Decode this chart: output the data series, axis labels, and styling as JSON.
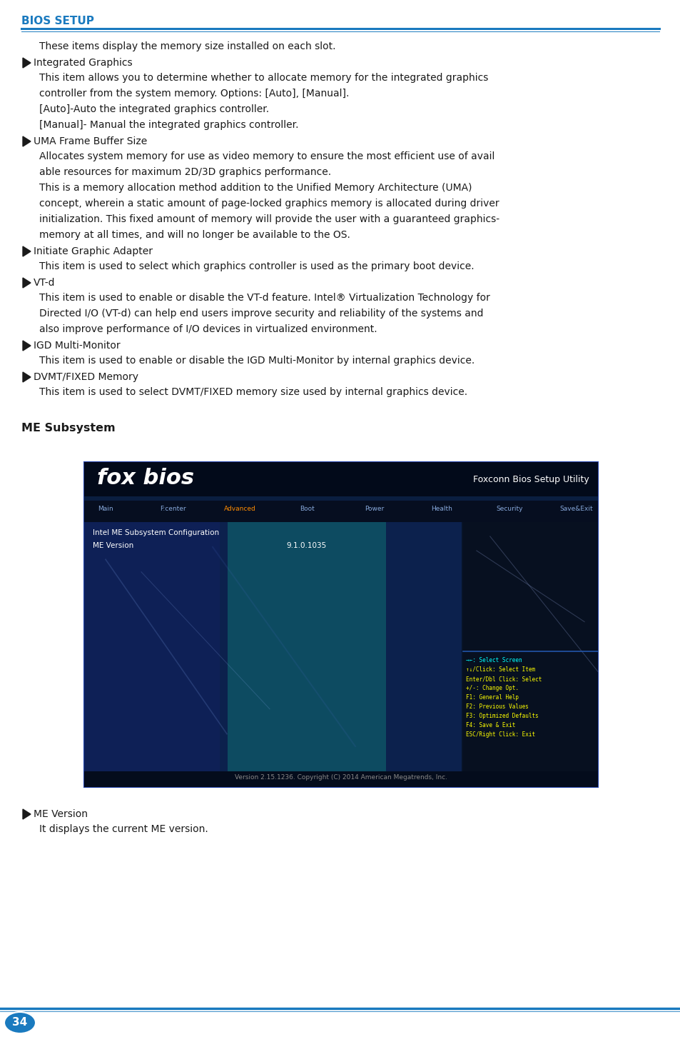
{
  "page_bg": "#ffffff",
  "header_text": "BIOS SETUP",
  "header_color": "#1a7abf",
  "header_line_color": "#1a7abf",
  "body_text_color": "#1a1a1a",
  "section_title": "ME Subsystem",
  "bullet_color": "#1a1a1a",
  "page_number": "34",
  "page_number_bg": "#1a7abf",
  "page_number_text_color": "#ffffff",
  "bottom_line_color": "#1a7abf",
  "paragraphs": [
    {
      "indent": true,
      "bullet": false,
      "text": "These items display the memory size installed on each slot."
    },
    {
      "indent": false,
      "bullet": true,
      "text": "Integrated Graphics"
    },
    {
      "indent": true,
      "bullet": false,
      "text": "This item allows you to determine whether to allocate memory for the integrated graphics\ncontroller from the system memory. Options: [Auto], [Manual].\n[Auto]-Auto the integrated graphics controller.\n[Manual]- Manual the integrated graphics controller."
    },
    {
      "indent": false,
      "bullet": true,
      "text": "UMA Frame Buffer Size"
    },
    {
      "indent": true,
      "bullet": false,
      "text": "Allocates system memory for use as video memory to ensure the most efficient use of avail\nable resources for maximum 2D/3D graphics performance.\nThis is a memory allocation method addition to the Unified Memory Architecture (UMA)\nconcept, wherein a static amount of page-locked graphics memory is allocated during driver\ninitialization. This fixed amount of memory will provide the user with a guaranteed graphics-\nmemory at all times, and will no longer be available to the OS."
    },
    {
      "indent": false,
      "bullet": true,
      "text": "Initiate Graphic Adapter"
    },
    {
      "indent": true,
      "bullet": false,
      "text": "This item is used to select which graphics controller is used as the primary boot device."
    },
    {
      "indent": false,
      "bullet": true,
      "text": "VT-d"
    },
    {
      "indent": true,
      "bullet": false,
      "text": "This item is used to enable or disable the VT-d feature. Intel® Virtualization Technology for\nDirected I/O (VT-d) can help end users improve security and reliability of the systems and\nalso improve performance of I/O devices in virtualized environment."
    },
    {
      "indent": false,
      "bullet": true,
      "text": "IGD Multi-Monitor"
    },
    {
      "indent": true,
      "bullet": false,
      "text": "This item is used to enable or disable the IGD Multi-Monitor by internal graphics device."
    },
    {
      "indent": false,
      "bullet": true,
      "text": "DVMT/FIXED Memory"
    },
    {
      "indent": true,
      "bullet": false,
      "text": "This item is used to select DVMT/FIXED memory size used by internal graphics device."
    }
  ],
  "me_version_bullet": "ME Version",
  "me_version_desc": "It displays the current ME version.",
  "bios_screen": {
    "title_text": "fox bios",
    "subtitle_text": "Foxconn Bios Setup Utility",
    "menu_items": [
      "Main",
      "F:center",
      "Advanced",
      "Boot",
      "Power",
      "Health",
      "Security",
      "Save&Exit"
    ],
    "section_title": "Intel ME Subsystem Configuration",
    "item_label": "ME Version",
    "item_value": "9.1.0.1035",
    "sidebar_text": [
      "→←: Select Screen",
      "↑↓/Click: Select Item",
      "Enter/Dbl Click: Select",
      "+/-: Change Opt.",
      "F1: General Help",
      "F2: Previous Values",
      "F3: Optimized Defaults",
      "F4: Save & Exit",
      "ESC/Right Click: Exit"
    ],
    "footer_text": "Version 2.15.1236. Copyright (C) 2014 American Megatrends, Inc.",
    "sidebar_yellow": "#ffff00",
    "sidebar_cyan": "#00ffff"
  }
}
